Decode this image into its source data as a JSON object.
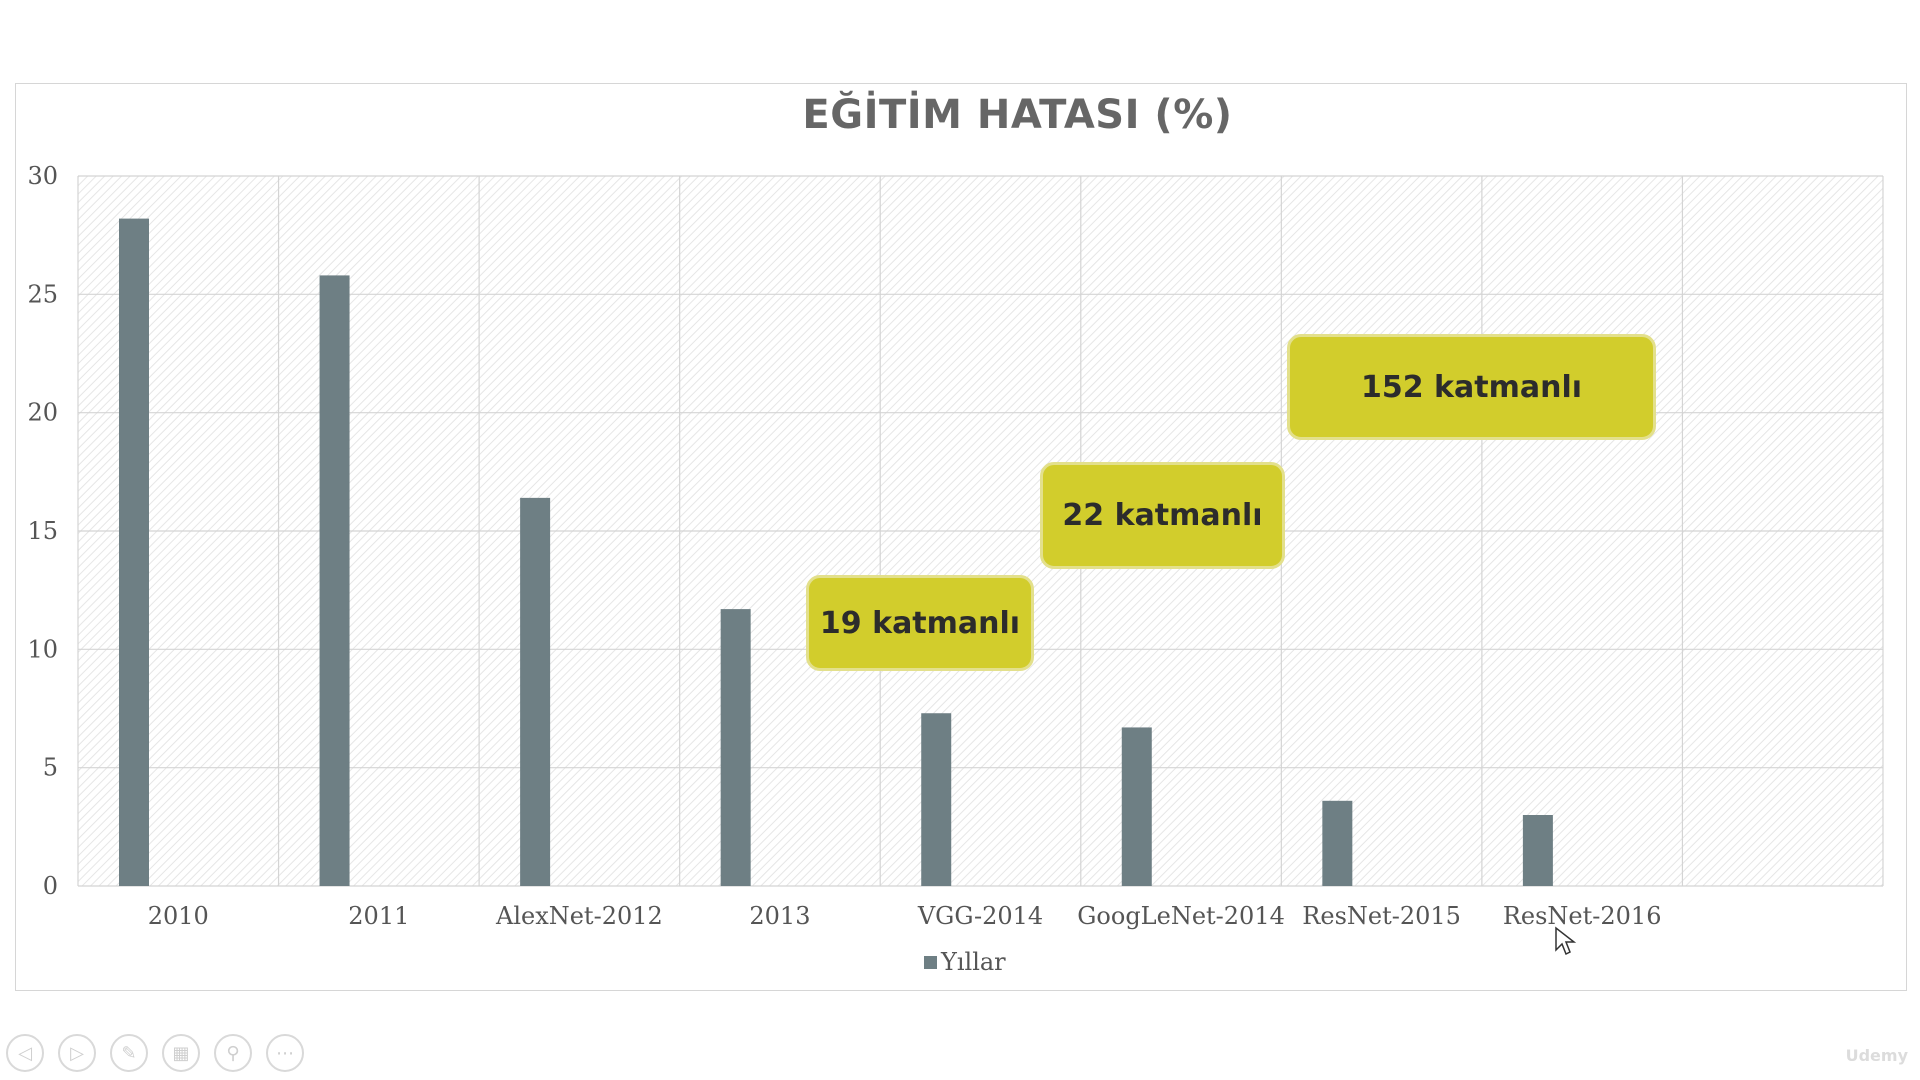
{
  "chart_data": {
    "type": "bar",
    "title": "EĞİTİM HATASI (%)",
    "categories": [
      "2010",
      "2011",
      "AlexNet-2012",
      "2013",
      "VGG-2014",
      "GoogLeNet-2014",
      "ResNet-2015",
      "ResNet-2016"
    ],
    "series": [
      {
        "name": "Yıllar",
        "values": [
          28.2,
          25.8,
          16.4,
          11.7,
          7.3,
          6.7,
          3.6,
          3.0
        ]
      }
    ],
    "ylim": [
      0,
      30
    ],
    "yticks": [
      0,
      5,
      10,
      15,
      20,
      25,
      30
    ],
    "grid": true,
    "legend": "bottom",
    "bar_color": "#6e7f84",
    "annotations": [
      {
        "text": "19 katmanlı"
      },
      {
        "text": "22 katmanlı"
      },
      {
        "text": "152 katmanlı"
      }
    ]
  },
  "controls": [
    "previous-icon",
    "next-icon",
    "pen-icon",
    "slides-icon",
    "zoom-icon",
    "more-icon"
  ],
  "watermark": "Udemy",
  "colors": {
    "callout": "#d2cd2c",
    "bar": "#6e7f84"
  }
}
